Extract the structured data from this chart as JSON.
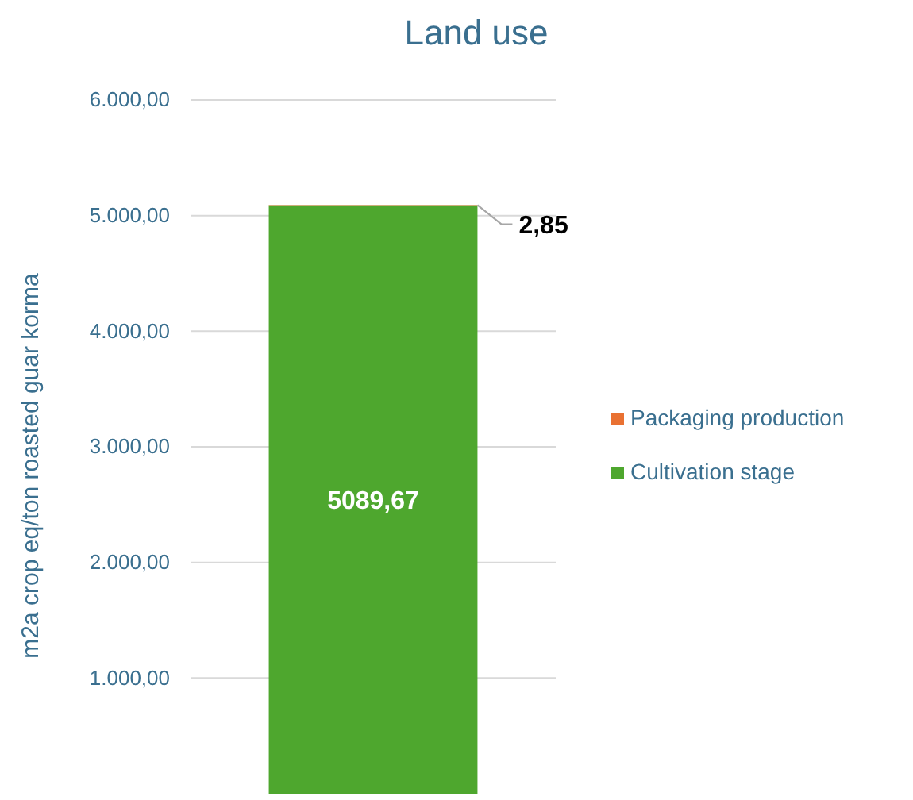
{
  "chart_data": {
    "type": "bar",
    "title": "Land use",
    "ylabel": "m2a crop eq/ton roasted guar korma",
    "categories": [
      null
    ],
    "stacked": true,
    "series": [
      {
        "name": "Cultivation stage",
        "color": "#4ea72e",
        "values": [
          5089.67
        ],
        "value_labels": [
          "5089,67"
        ]
      },
      {
        "name": "Packaging production",
        "color": "#e97132",
        "values": [
          2.85
        ],
        "value_labels": [
          "2,85"
        ]
      }
    ],
    "ylim": [
      0,
      6000
    ],
    "yticks": [
      {
        "value": 1000,
        "label": "1.000,00"
      },
      {
        "value": 2000,
        "label": "2.000,00"
      },
      {
        "value": 3000,
        "label": "3.000,00"
      },
      {
        "value": 4000,
        "label": "4.000,00"
      },
      {
        "value": 5000,
        "label": "5.000,00"
      },
      {
        "value": 6000,
        "label": "6.000,00"
      }
    ],
    "grid": "y",
    "legend": "right"
  }
}
